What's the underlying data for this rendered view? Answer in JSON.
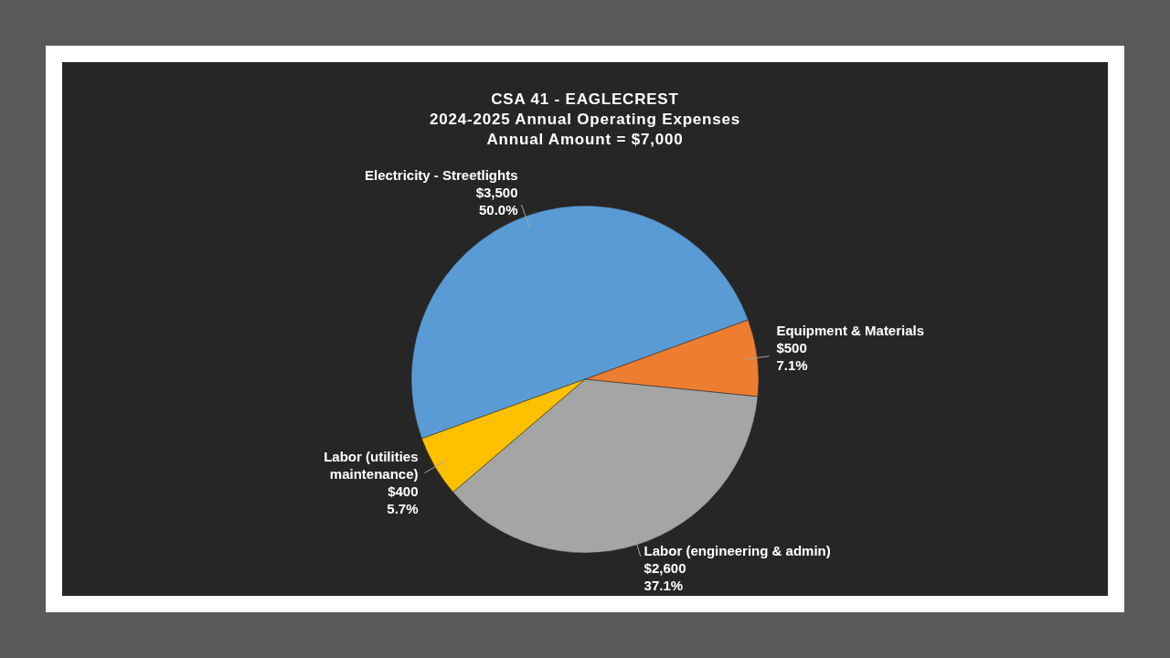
{
  "chart_data": {
    "type": "pie",
    "title": "CSA 41 - EAGLECREST\n2024-2025 Annual Operating Expenses\nAnnual Amount = $7,000",
    "categories": [
      "Electricity - Streetlights",
      "Equipment & Materials",
      "Labor (engineering & admin)",
      "Labor (utilities maintenance)"
    ],
    "values": [
      3500,
      500,
      2600,
      400
    ],
    "colors": [
      "#5b9bd5",
      "#ed7d31",
      "#a5a5a5",
      "#ffc000"
    ],
    "value_labels": [
      "$3,500\n50.0%",
      "$500\n7.1%",
      "$2,600\n37.1%",
      "$400\n5.7%"
    ],
    "legend": false
  }
}
